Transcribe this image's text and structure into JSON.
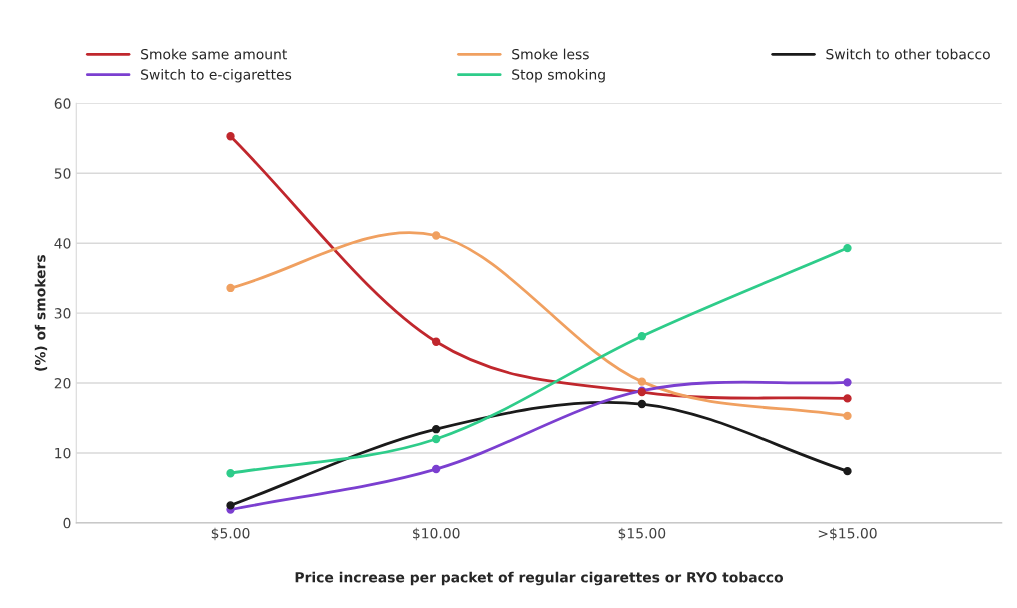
{
  "chart_data": {
    "type": "line",
    "xlabel": "Price increase per packet of regular cigarettes or RYO tobacco",
    "ylabel": "(%) of smokers",
    "categories": [
      "$5.00",
      "$10.00",
      "$15.00",
      ">$15.00"
    ],
    "series": [
      {
        "name": "Smoke same amount",
        "color": "#c0272d",
        "values": [
          55.3,
          25.9,
          18.7,
          17.8
        ]
      },
      {
        "name": "Smoke less",
        "color": "#f0a060",
        "values": [
          33.6,
          41.1,
          20.2,
          15.3
        ]
      },
      {
        "name": "Switch to other tobacco",
        "color": "#1a1a1a",
        "values": [
          2.5,
          13.4,
          17.0,
          7.4
        ]
      },
      {
        "name": "Switch to e-cigarettes",
        "color": "#7b3fd0",
        "values": [
          1.9,
          7.7,
          18.9,
          20.1
        ]
      },
      {
        "name": "Stop smoking",
        "color": "#2ecc8a",
        "values": [
          7.1,
          12.0,
          26.7,
          39.3
        ]
      }
    ],
    "ylim": [
      0,
      60
    ],
    "yticks": [
      0,
      10,
      20,
      30,
      40,
      50,
      60
    ],
    "grid": "y",
    "legend": "top",
    "marker": "circle",
    "line_style": "solid"
  }
}
